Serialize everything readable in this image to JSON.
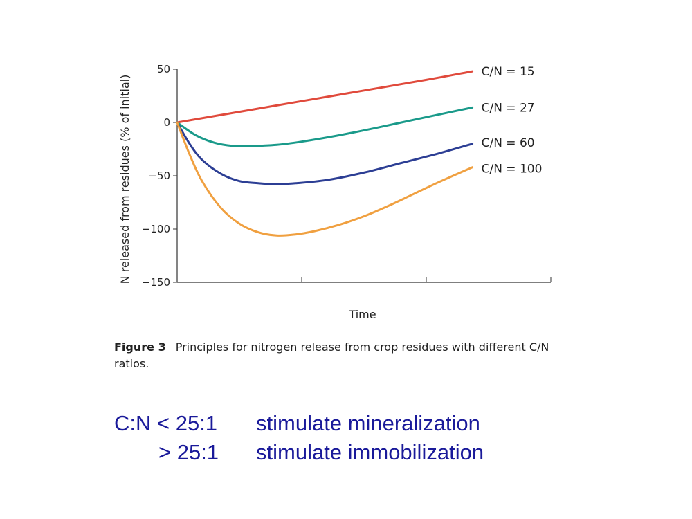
{
  "chart_data": {
    "type": "line",
    "ylabel": "N released from residues (% of initial)",
    "xlabel": "Time",
    "ylim": [
      -150,
      50
    ],
    "xlim": [
      0,
      3
    ],
    "yticks": [
      50,
      0,
      -50,
      -100,
      -150
    ],
    "ytick_labels": [
      "50",
      "0",
      "−50",
      "−100",
      "−150"
    ],
    "xticks": [
      0,
      1,
      2,
      3
    ],
    "grid": false,
    "series": [
      {
        "name": "C/N = 15",
        "color": "#e04a3c",
        "x": [
          0,
          0.5,
          1.0,
          1.5,
          2.0,
          2.37
        ],
        "y": [
          0,
          10,
          20,
          30,
          40,
          48
        ]
      },
      {
        "name": "C/N = 27",
        "color": "#1a9a8a",
        "x": [
          0,
          0.15,
          0.3,
          0.45,
          0.6,
          0.8,
          1.0,
          1.3,
          1.6,
          2.0,
          2.37
        ],
        "y": [
          0,
          -12,
          -19,
          -22,
          -22,
          -21,
          -18,
          -12,
          -5,
          5,
          14
        ]
      },
      {
        "name": "C/N = 60",
        "color": "#2c3e94",
        "x": [
          0,
          0.1,
          0.2,
          0.35,
          0.5,
          0.65,
          0.8,
          0.95,
          1.2,
          1.5,
          1.8,
          2.1,
          2.37
        ],
        "y": [
          0,
          -20,
          -35,
          -48,
          -55,
          -57,
          -58,
          -57,
          -54,
          -47,
          -38,
          -29,
          -20
        ]
      },
      {
        "name": "C/N = 100",
        "color": "#f0a040",
        "x": [
          0,
          0.1,
          0.2,
          0.35,
          0.5,
          0.65,
          0.8,
          0.95,
          1.1,
          1.3,
          1.5,
          1.7,
          1.9,
          2.1,
          2.37
        ],
        "y": [
          0,
          -30,
          -55,
          -80,
          -95,
          -103,
          -106,
          -105,
          -102,
          -96,
          -88,
          -78,
          -67,
          -56,
          -42
        ]
      }
    ]
  },
  "caption": {
    "figure_label": "Figure 3",
    "text": "Principles for nitrogen release from crop residues with different C/N ratios."
  },
  "notes": [
    {
      "condition": "C:N < 25:1",
      "effect": "stimulate mineralization"
    },
    {
      "condition": "> 25:1",
      "effect": "stimulate immobilization"
    }
  ]
}
